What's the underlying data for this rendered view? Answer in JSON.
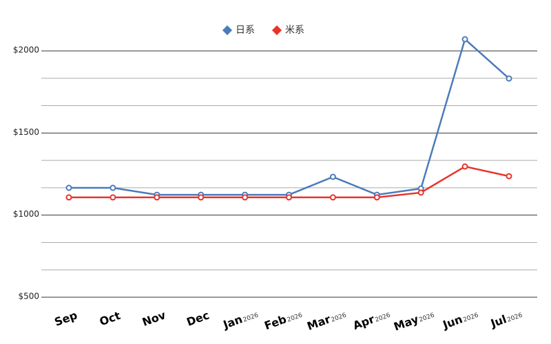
{
  "chart_data": {
    "type": "line",
    "categories": [
      "Sep",
      "Oct",
      "Nov",
      "Dec",
      "Jan",
      "Feb",
      "Mar",
      "Apr",
      "May",
      "Jun",
      "Jul"
    ],
    "category_years": [
      null,
      null,
      null,
      null,
      "2026",
      "2026",
      "2026",
      "2026",
      "2026",
      "2026",
      "2026"
    ],
    "series": [
      {
        "name": "日系",
        "color": "#4a7bbb",
        "values": [
          1166,
          1166,
          1124,
          1124,
          1124,
          1124,
          1233,
          1124,
          1162,
          2071,
          1832
        ]
      },
      {
        "name": "米系",
        "color": "#e8332b",
        "values": [
          1108,
          1108,
          1108,
          1108,
          1108,
          1108,
          1108,
          1108,
          1137,
          1296,
          1237
        ]
      }
    ],
    "ylim": [
      500,
      2000
    ],
    "yticks": [
      {
        "value": 500,
        "label": "$500"
      },
      {
        "value": 1000,
        "label": "$1000"
      },
      {
        "value": 1500,
        "label": "$1500"
      },
      {
        "value": 2000,
        "label": "$2000"
      }
    ],
    "minor_grid_divisions": 3,
    "grid": true,
    "legend": "top"
  }
}
